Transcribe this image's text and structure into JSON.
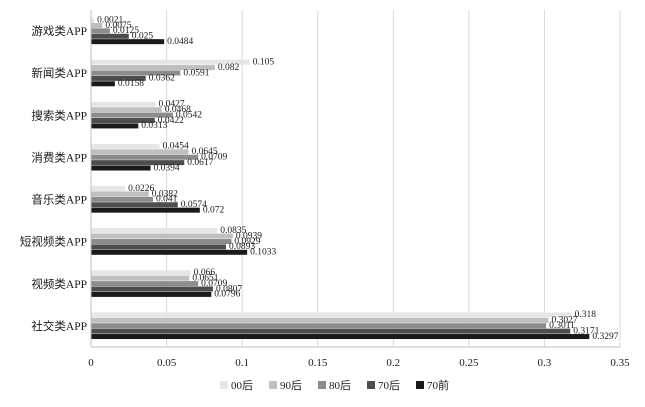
{
  "chart_data": {
    "type": "bar",
    "orientation": "horizontal",
    "categories": [
      "游戏类APP",
      "新闻类APP",
      "搜索类APP",
      "消费类APP",
      "音乐类APP",
      "短视频类APP",
      "视频类APP",
      "社交类APP"
    ],
    "series": [
      {
        "name": "00后",
        "color": "#e6e6e6",
        "values": [
          0.0021,
          0.105,
          0.0427,
          0.0454,
          0.0226,
          0.0835,
          0.066,
          0.318
        ]
      },
      {
        "name": "90后",
        "color": "#bfbfbf",
        "values": [
          0.0075,
          0.082,
          0.0468,
          0.0645,
          0.0382,
          0.0939,
          0.0651,
          0.3027
        ]
      },
      {
        "name": "80后",
        "color": "#8c8c8c",
        "values": [
          0.0125,
          0.0591,
          0.0542,
          0.0709,
          0.041,
          0.0929,
          0.0709,
          0.3011
        ]
      },
      {
        "name": "70后",
        "color": "#4d4d4d",
        "values": [
          0.025,
          0.0362,
          0.0422,
          0.0617,
          0.0574,
          0.0893,
          0.0807,
          0.3171
        ]
      },
      {
        "name": "70前",
        "color": "#1a1a1a",
        "values": [
          0.0484,
          0.0158,
          0.0313,
          0.0394,
          0.072,
          0.1033,
          0.0796,
          0.3297
        ]
      }
    ],
    "value_labels": [
      [
        "0.0021",
        "0.105",
        "0.0427",
        "0.0454",
        "0.0226",
        "0.0835",
        "0.066",
        "0.318"
      ],
      [
        "0.0075",
        "0.082",
        "0.0468",
        "0.0645",
        "0.0382",
        "0.0939",
        "0.0651",
        "0.3027"
      ],
      [
        "0.0125",
        "0.0591",
        "0.0542",
        "0.0709",
        "0.041",
        "0.0929",
        "0.0709",
        "0.3011"
      ],
      [
        "0.025",
        "0.0362",
        "0.0422",
        "0.0617",
        "0.0574",
        "0.0893",
        "0.0807",
        "0.3171"
      ],
      [
        "0.0484",
        "0.0158",
        "0.0313",
        "0.0394",
        "0.072",
        "0.1033",
        "0.0796",
        "0.3297"
      ]
    ],
    "xlim": [
      0,
      0.35
    ],
    "x_ticks": [
      0,
      0.05,
      0.1,
      0.15,
      0.2,
      0.25,
      0.3,
      0.35
    ],
    "x_tick_labels": [
      "0",
      "0.05",
      "0.1",
      "0.15",
      "0.2",
      "0.25",
      "0.3",
      "0.35"
    ],
    "grid": "vertical",
    "legend_position": "bottom",
    "title": "",
    "xlabel": "",
    "ylabel": ""
  }
}
